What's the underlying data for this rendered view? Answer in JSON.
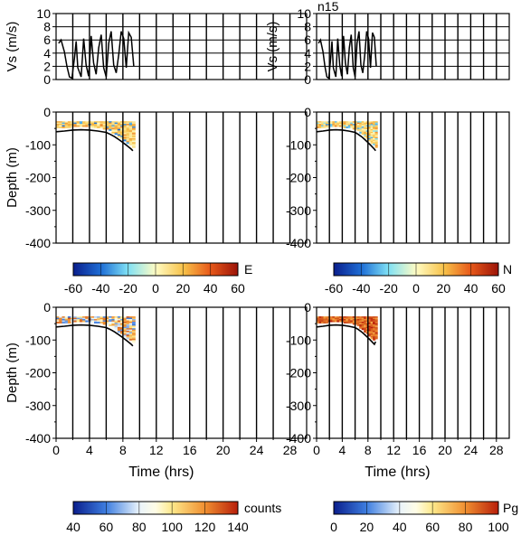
{
  "station_label": "n15",
  "colors": {
    "axis": "#000000",
    "grid": "#000000",
    "trace": "#000000"
  },
  "chart_data": [
    {
      "type": "line",
      "panel": "speed-left",
      "ylabel": "Vs (m/s)",
      "ylim": [
        0,
        10
      ],
      "yticks": [
        0,
        2,
        4,
        6,
        8,
        10
      ],
      "xlim": [
        0,
        30
      ],
      "x": [
        0.3,
        0.6,
        1.0,
        1.3,
        1.6,
        1.9,
        2.2,
        2.4,
        2.6,
        3.0,
        3.3,
        3.6,
        3.9,
        4.2,
        4.5,
        4.8,
        5.1,
        5.4,
        5.7,
        6.0,
        6.3,
        6.6,
        6.9,
        7.2,
        7.5,
        7.8,
        8.1,
        8.4,
        8.7,
        9.0,
        9.3
      ],
      "values": [
        5.5,
        6.0,
        4.2,
        2.0,
        0.4,
        0.2,
        3.2,
        5.8,
        1.8,
        0.4,
        6.2,
        2.2,
        0.5,
        6.6,
        2.5,
        0.8,
        4.8,
        6.8,
        1.8,
        0.4,
        5.5,
        7.3,
        2.2,
        1.0,
        3.8,
        7.3,
        6.2,
        1.8,
        7.1,
        6.4,
        2.0
      ]
    },
    {
      "type": "line",
      "panel": "speed-right",
      "title": "n15",
      "ylabel": "Vs (m/s)",
      "ylim": [
        0,
        10
      ],
      "yticks": [
        0,
        2,
        4,
        6,
        8,
        10
      ],
      "xlim": [
        0,
        30
      ],
      "x": [
        0.3,
        0.6,
        1.0,
        1.3,
        1.6,
        1.9,
        2.2,
        2.4,
        2.6,
        3.0,
        3.3,
        3.6,
        3.9,
        4.2,
        4.5,
        4.8,
        5.1,
        5.4,
        5.7,
        6.0,
        6.3,
        6.6,
        6.9,
        7.2,
        7.5,
        7.8,
        8.1,
        8.4,
        8.7,
        9.0,
        9.3
      ],
      "values": [
        5.5,
        6.0,
        4.2,
        2.0,
        0.4,
        0.2,
        3.2,
        5.8,
        1.8,
        0.4,
        6.2,
        2.2,
        0.5,
        6.6,
        2.5,
        0.8,
        4.8,
        6.8,
        1.8,
        0.4,
        5.5,
        7.3,
        2.2,
        1.0,
        3.8,
        7.3,
        6.2,
        1.8,
        7.1,
        6.4,
        2.0
      ]
    },
    {
      "type": "heatmap",
      "panel": "E",
      "ylabel": "Depth (m)",
      "ylim": [
        -400,
        0
      ],
      "yticks": [
        0,
        -100,
        -200,
        -300,
        -400
      ],
      "xlim": [
        0,
        30
      ],
      "data_xrange": [
        0,
        9.2
      ],
      "data_depth_top": -28,
      "colorbar": {
        "label": "E",
        "ticks": [
          -60,
          -40,
          -20,
          0,
          20,
          40,
          60
        ],
        "range": [
          -60,
          60
        ]
      },
      "bottom_x": [
        0,
        1,
        2,
        3,
        4,
        5,
        6,
        6.5,
        7,
        7.5,
        8,
        8.5,
        9,
        9.2
      ],
      "bottom_depth": [
        -60,
        -58,
        -55,
        -54,
        -55,
        -58,
        -62,
        -68,
        -75,
        -84,
        -93,
        -103,
        -113,
        -118
      ],
      "dominant_values": [
        10,
        20,
        25,
        15,
        5,
        -35
      ]
    },
    {
      "type": "heatmap",
      "panel": "N",
      "ylabel": "",
      "ylim": [
        -400,
        0
      ],
      "yticks": [
        0,
        -100,
        -200,
        -300,
        -400
      ],
      "xlim": [
        0,
        30
      ],
      "data_xrange": [
        0,
        9.2
      ],
      "data_depth_top": -28,
      "colorbar": {
        "label": "N",
        "ticks": [
          -60,
          -40,
          -20,
          0,
          20,
          40,
          60
        ],
        "range": [
          -60,
          60
        ]
      },
      "bottom_x": [
        0,
        1,
        2,
        3,
        4,
        5,
        6,
        6.5,
        7,
        7.5,
        8,
        8.5,
        9,
        9.2
      ],
      "bottom_depth": [
        -60,
        -58,
        -55,
        -54,
        -55,
        -58,
        -62,
        -68,
        -75,
        -84,
        -93,
        -103,
        -113,
        -118
      ],
      "dominant_values": [
        -25,
        5,
        15,
        10,
        20,
        25
      ]
    },
    {
      "type": "heatmap",
      "panel": "counts",
      "ylabel": "Depth (m)",
      "xlabel": "Time (hrs)",
      "ylim": [
        -400,
        0
      ],
      "yticks": [
        0,
        -100,
        -200,
        -300,
        -400
      ],
      "xlim": [
        0,
        30
      ],
      "xticks": [
        0,
        4,
        8,
        12,
        16,
        20,
        24,
        28
      ],
      "data_xrange": [
        0,
        9.2
      ],
      "data_depth_top": -28,
      "colorbar": {
        "label": "counts",
        "ticks": [
          40,
          60,
          80,
          100,
          120,
          140
        ],
        "range": [
          40,
          140
        ]
      },
      "bottom_x": [
        0,
        1,
        2,
        3,
        4,
        5,
        6,
        6.5,
        7,
        7.5,
        8,
        8.5,
        9,
        9.2
      ],
      "bottom_depth": [
        -60,
        -58,
        -55,
        -54,
        -55,
        -58,
        -62,
        -68,
        -75,
        -84,
        -93,
        -103,
        -113,
        -118
      ],
      "dominant_values": [
        125,
        115,
        105,
        95,
        80,
        65
      ]
    },
    {
      "type": "heatmap",
      "panel": "Pg",
      "ylabel": "",
      "xlabel": "Time (hrs)",
      "ylim": [
        -400,
        0
      ],
      "yticks": [
        0,
        -100,
        -200,
        -300,
        -400
      ],
      "xlim": [
        0,
        30
      ],
      "xticks": [
        0,
        4,
        8,
        12,
        16,
        20,
        24,
        28
      ],
      "data_xrange": [
        0,
        9.2
      ],
      "data_depth_top": -28,
      "colorbar": {
        "label": "Pg",
        "ticks": [
          0,
          20,
          40,
          60,
          80,
          100
        ],
        "range": [
          0,
          100
        ]
      },
      "bottom_x": [
        0,
        1,
        2,
        3,
        4,
        5,
        6,
        6.5,
        7,
        7.5,
        8,
        8.5,
        9,
        9.2
      ],
      "bottom_depth": [
        -60,
        -58,
        -55,
        -54,
        -55,
        -58,
        -62,
        -68,
        -75,
        -84,
        -93,
        -103,
        -113,
        -105
      ],
      "dominant_values": [
        95,
        90,
        85,
        80
      ]
    }
  ]
}
